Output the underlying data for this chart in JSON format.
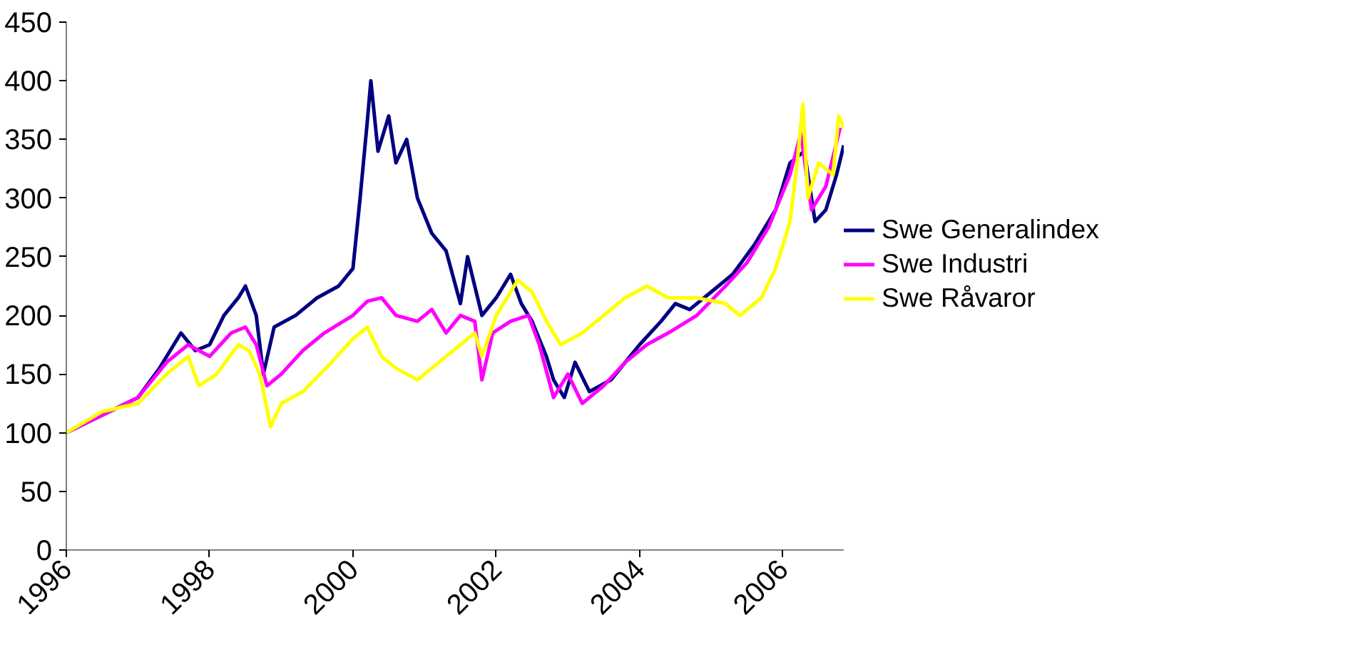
{
  "chart_data": {
    "type": "line",
    "xlim": [
      1996,
      2006.85
    ],
    "xticks": [
      1996,
      1998,
      2000,
      2002,
      2004,
      2006
    ],
    "ylim": [
      0,
      450
    ],
    "yticks": [
      0,
      50,
      100,
      150,
      200,
      250,
      300,
      350,
      400,
      450
    ],
    "grid": false,
    "legend": "right",
    "series": [
      {
        "name": "Swe Generalindex",
        "color": "#000080",
        "x": [
          1996.0,
          1996.5,
          1997.0,
          1997.3,
          1997.6,
          1997.8,
          1998.0,
          1998.2,
          1998.4,
          1998.5,
          1998.65,
          1998.75,
          1998.9,
          1999.2,
          1999.5,
          1999.8,
          2000.0,
          2000.1,
          2000.2,
          2000.25,
          2000.35,
          2000.5,
          2000.6,
          2000.75,
          2000.9,
          2001.1,
          2001.3,
          2001.5,
          2001.6,
          2001.8,
          2002.0,
          2002.2,
          2002.35,
          2002.5,
          2002.7,
          2002.8,
          2002.95,
          2003.1,
          2003.3,
          2003.6,
          2003.8,
          2004.0,
          2004.3,
          2004.5,
          2004.7,
          2005.0,
          2005.3,
          2005.6,
          2005.9,
          2006.1,
          2006.3,
          2006.45,
          2006.6,
          2006.75,
          2006.85
        ],
        "values": [
          100,
          115,
          130,
          155,
          185,
          170,
          175,
          200,
          215,
          225,
          200,
          150,
          190,
          200,
          215,
          225,
          240,
          300,
          365,
          400,
          340,
          370,
          330,
          350,
          300,
          270,
          255,
          210,
          250,
          200,
          215,
          235,
          210,
          195,
          165,
          145,
          130,
          160,
          135,
          145,
          160,
          175,
          195,
          210,
          205,
          220,
          235,
          260,
          290,
          330,
          340,
          280,
          290,
          320,
          345
        ]
      },
      {
        "name": "Swe Industri",
        "color": "#ff00ff",
        "x": [
          1996.0,
          1996.5,
          1997.0,
          1997.4,
          1997.7,
          1998.0,
          1998.3,
          1998.5,
          1998.65,
          1998.8,
          1999.0,
          1999.3,
          1999.6,
          2000.0,
          2000.2,
          2000.4,
          2000.6,
          2000.9,
          2001.1,
          2001.3,
          2001.5,
          2001.7,
          2001.8,
          2001.95,
          2002.2,
          2002.45,
          2002.6,
          2002.8,
          2003.0,
          2003.2,
          2003.5,
          2003.8,
          2004.1,
          2004.4,
          2004.8,
          2005.2,
          2005.5,
          2005.8,
          2006.1,
          2006.25,
          2006.4,
          2006.6,
          2006.8
        ],
        "values": [
          100,
          115,
          130,
          160,
          175,
          165,
          185,
          190,
          175,
          140,
          150,
          170,
          185,
          200,
          212,
          215,
          200,
          195,
          205,
          185,
          200,
          195,
          145,
          185,
          195,
          200,
          175,
          130,
          150,
          125,
          140,
          160,
          175,
          185,
          200,
          225,
          245,
          275,
          320,
          355,
          290,
          310,
          360
        ]
      },
      {
        "name": "Swe Råvaror",
        "color": "#ffff00",
        "x": [
          1996.0,
          1996.5,
          1997.0,
          1997.4,
          1997.7,
          1997.85,
          1998.1,
          1998.4,
          1998.55,
          1998.7,
          1998.85,
          1999.0,
          1999.3,
          1999.7,
          2000.0,
          2000.2,
          2000.4,
          2000.6,
          2000.9,
          2001.2,
          2001.5,
          2001.7,
          2001.8,
          2002.0,
          2002.3,
          2002.5,
          2002.7,
          2002.9,
          2003.2,
          2003.5,
          2003.8,
          2004.1,
          2004.4,
          2004.8,
          2005.2,
          2005.4,
          2005.7,
          2005.9,
          2006.1,
          2006.2,
          2006.28,
          2006.35,
          2006.5,
          2006.7,
          2006.78,
          2006.85
        ],
        "values": [
          100,
          118,
          125,
          150,
          165,
          140,
          150,
          175,
          170,
          150,
          105,
          125,
          135,
          160,
          180,
          190,
          165,
          155,
          145,
          160,
          175,
          185,
          165,
          200,
          230,
          220,
          195,
          175,
          185,
          200,
          215,
          225,
          215,
          215,
          210,
          200,
          215,
          240,
          280,
          330,
          380,
          300,
          330,
          320,
          370,
          360
        ]
      }
    ]
  }
}
